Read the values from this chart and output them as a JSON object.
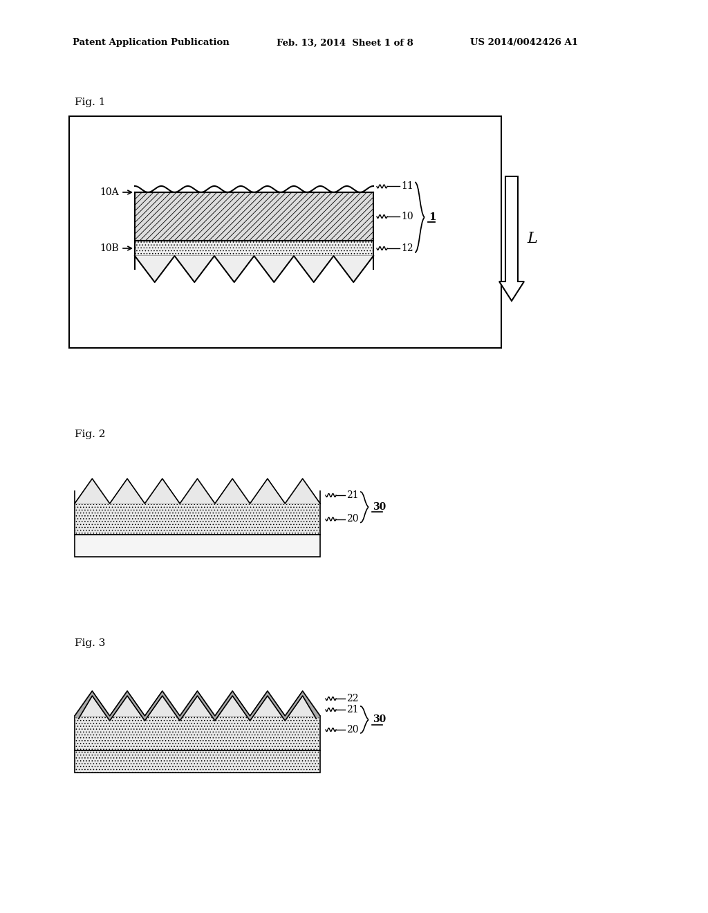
{
  "bg_color": "#ffffff",
  "header_left": "Patent Application Publication",
  "header_mid": "Feb. 13, 2014  Sheet 1 of 8",
  "header_right": "US 2014/0042426 A1",
  "fig1_label": "Fig. 1",
  "fig2_label": "Fig. 2",
  "fig3_label": "Fig. 3",
  "hatch_cross": "////",
  "hatch_dot": "....",
  "color_cross": "#cccccc",
  "color_dot": "#dddddd",
  "color_white": "#ffffff",
  "color_gray_coat": "#aaaaaa",
  "color_black": "#000000"
}
